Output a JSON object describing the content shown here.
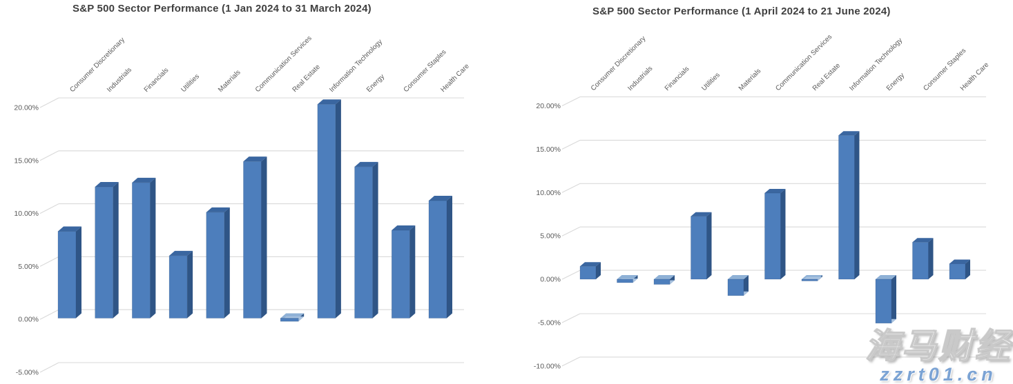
{
  "page": {
    "background": "#ffffff"
  },
  "watermark": {
    "brand": "海马财经",
    "url": "zzrt01.cn",
    "brand_color": "#ffffff",
    "url_color": "#7ba3d4"
  },
  "chart_data": [
    {
      "type": "bar",
      "style": "3d-column",
      "title": "S&P 500 Sector Performance (1 Jan 2024 to 31 March 2024)",
      "categories": [
        "Consumer Discretionary",
        "Industrials",
        "Financials",
        "Utilities",
        "Materials",
        "Communication Services",
        "Real Estate",
        "Information Technology",
        "Energy",
        "Consumer Staples",
        "Health Care"
      ],
      "values": [
        8.2,
        12.4,
        12.8,
        5.9,
        10.0,
        14.8,
        -0.3,
        20.2,
        14.3,
        8.3,
        11.1
      ],
      "unit": "%",
      "xlabel": "",
      "ylabel": "",
      "yticks": [
        "20.00%",
        "15.00%",
        "10.00%",
        "5.00%",
        "0.00%",
        "-5.00%"
      ],
      "ytick_values": [
        20,
        15,
        10,
        5,
        0,
        -5
      ],
      "ylim": [
        -5,
        20
      ],
      "grid": true,
      "legend": "none",
      "bar_color": "#4d7ebc",
      "bar_side_color": "#2f5586",
      "bar_top_color": "#3a66a0",
      "bar_top_negative_color": "#8fb1d6",
      "bar_bottom_negative_color": "#a9c3e0",
      "grid_color": "#d9d9d9",
      "axis_label_color": "#595959",
      "title_color": "#3f3f3f"
    },
    {
      "type": "bar",
      "style": "3d-column",
      "title": "S&P 500 Sector Performance (1 April 2024 to 21 June 2024)",
      "categories": [
        "Consumer Discretionary",
        "Industrials",
        "Financials",
        "Utilities",
        "Materials",
        "Communication Services",
        "Real Estate",
        "Information Technology",
        "Energy",
        "Consumer Staples",
        "Health Care"
      ],
      "values": [
        1.5,
        -0.4,
        -0.6,
        7.3,
        -1.9,
        10.0,
        -0.2,
        16.7,
        -5.1,
        4.3,
        1.8
      ],
      "unit": "%",
      "xlabel": "",
      "ylabel": "",
      "yticks": [
        "20.00%",
        "15.00%",
        "10.00%",
        "5.00%",
        "0.00%",
        "-5.00%",
        "-10.00%"
      ],
      "ytick_values": [
        20,
        15,
        10,
        5,
        0,
        -5,
        -10
      ],
      "ylim": [
        -10,
        20
      ],
      "grid": true,
      "legend": "none",
      "bar_color": "#4d7ebc",
      "bar_side_color": "#2f5586",
      "bar_top_color": "#3a66a0",
      "bar_top_negative_color": "#8fb1d6",
      "bar_bottom_negative_color": "#a9c3e0",
      "grid_color": "#d9d9d9",
      "axis_label_color": "#595959",
      "title_color": "#3f3f3f"
    }
  ]
}
